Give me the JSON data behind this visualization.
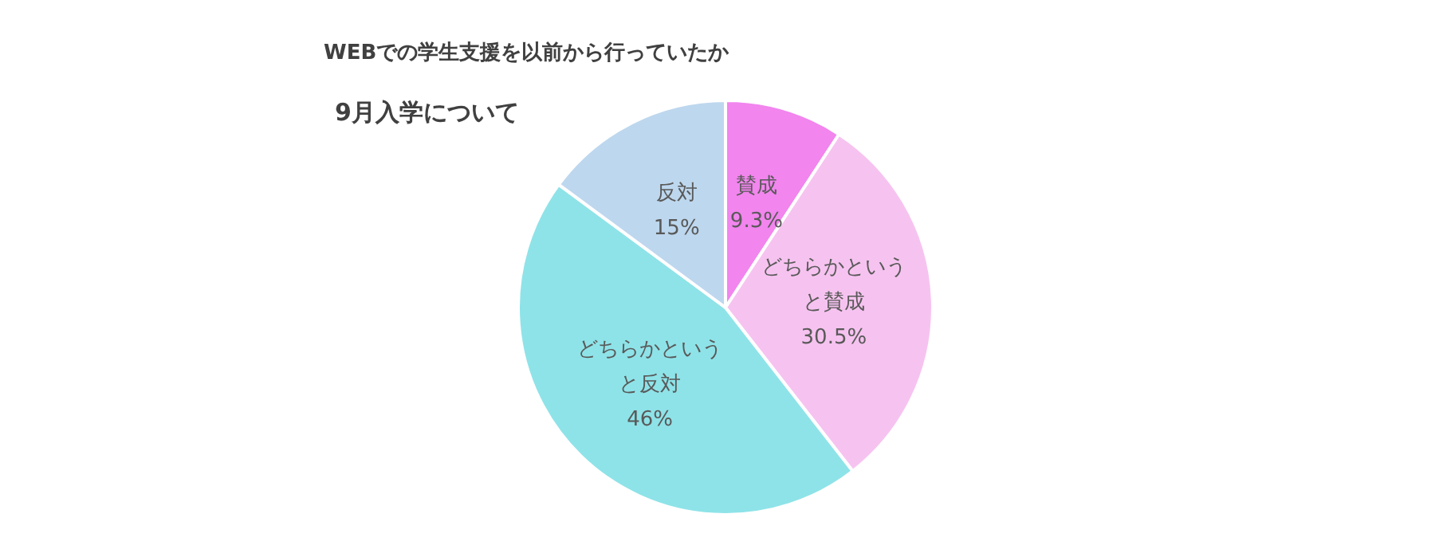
{
  "chart_data": {
    "type": "pie",
    "title": "WEBでの学生支援を以前から行っていたか",
    "subtitle": "9月入学について",
    "categories": [
      "賛成",
      "どちらかというと賛成",
      "どちらかというと反対",
      "反対"
    ],
    "values": [
      9.3,
      30.5,
      46,
      15
    ],
    "colors": [
      "#f285ee",
      "#f6c3f0",
      "#8ee3e8",
      "#bdd7ee"
    ],
    "value_labels": [
      "9.3%",
      "30.5%",
      "46%",
      "15%"
    ],
    "legend": false
  }
}
